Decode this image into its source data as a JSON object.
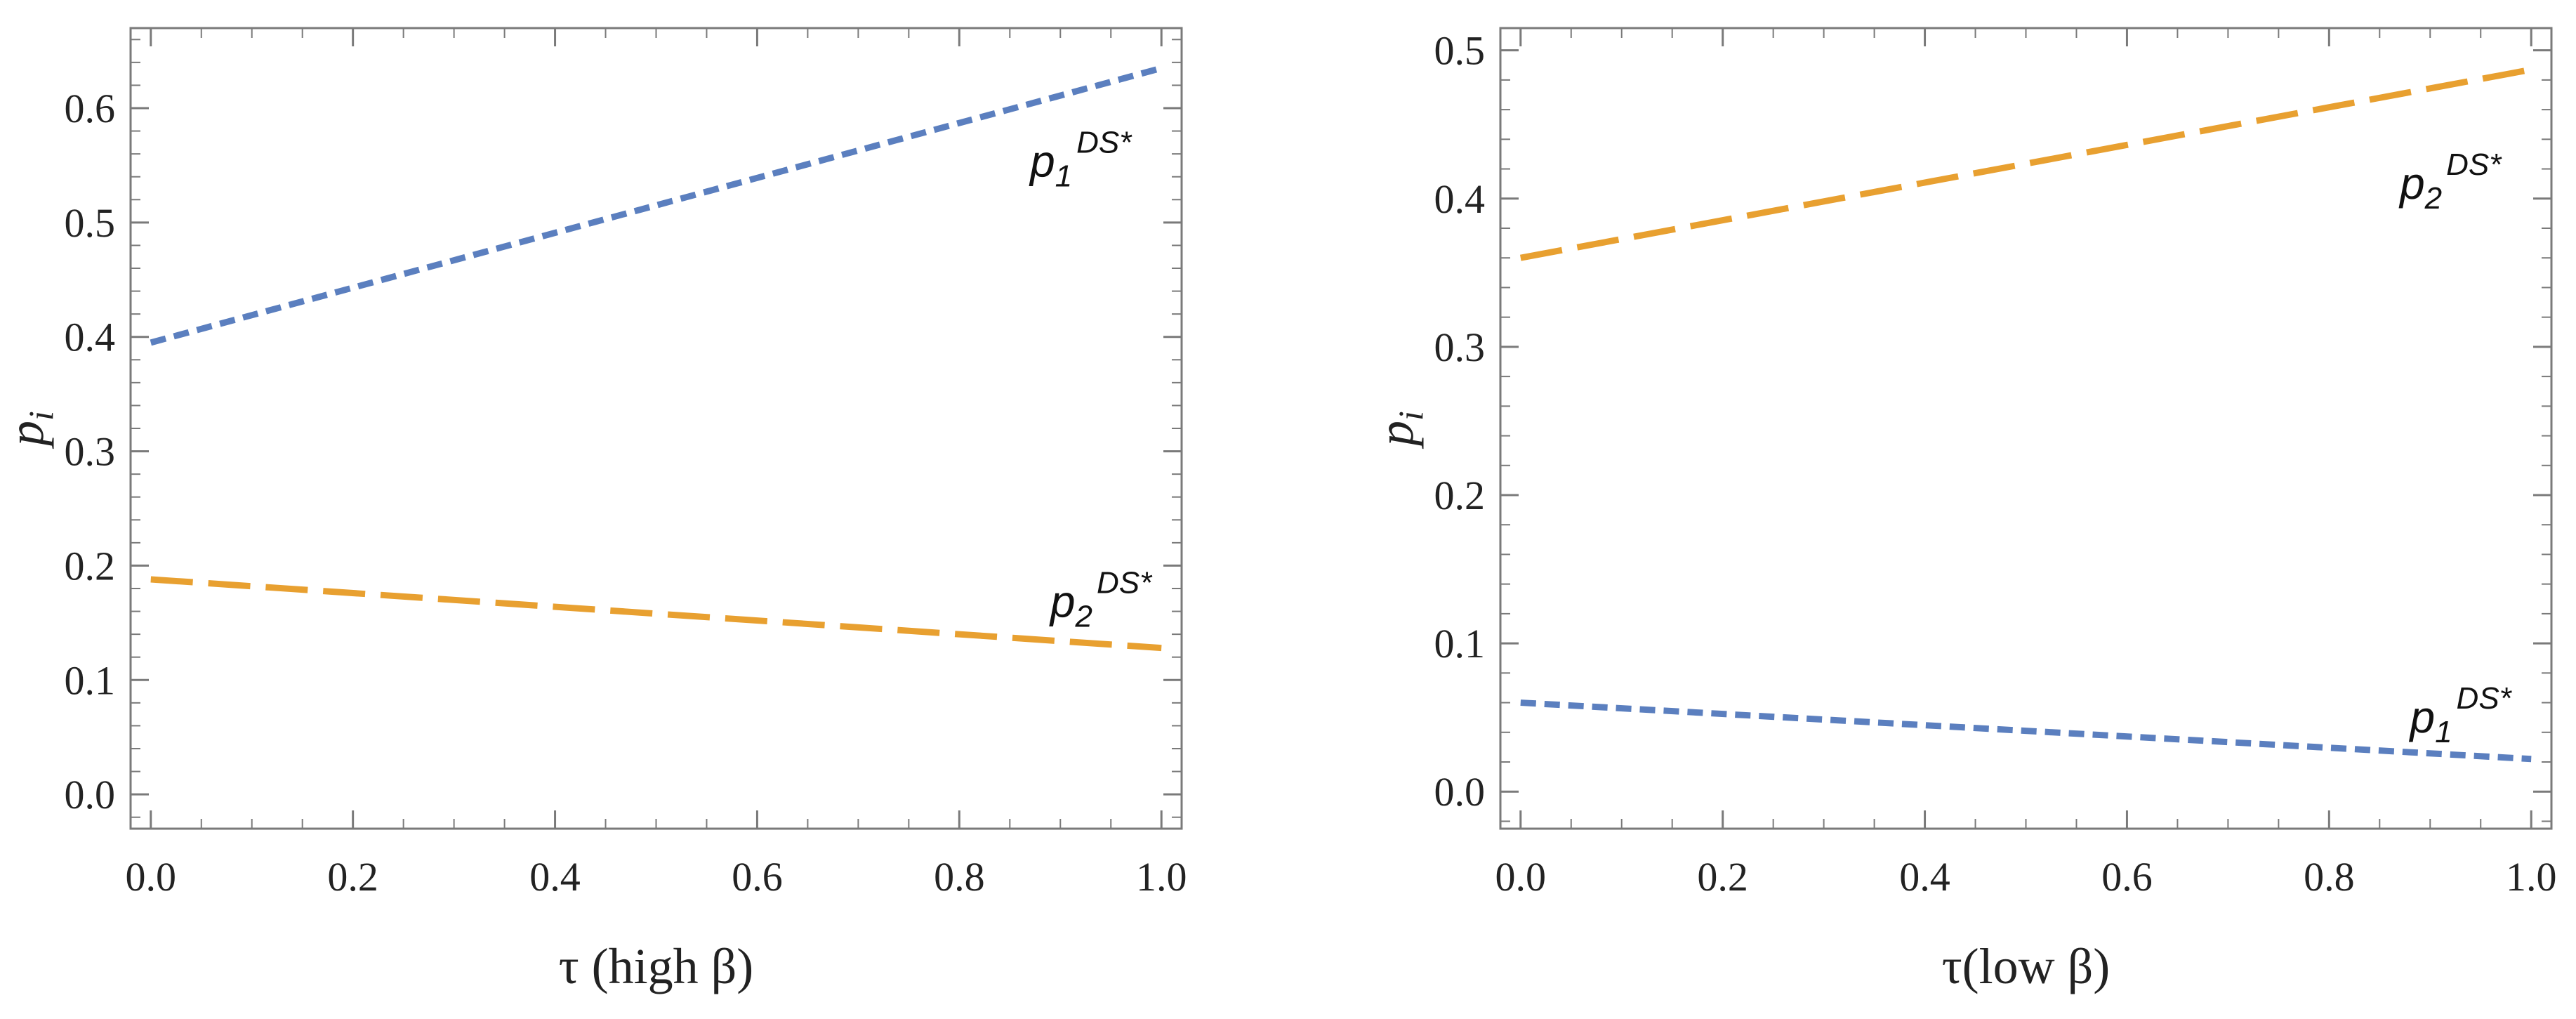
{
  "chart_data": [
    {
      "type": "line",
      "xlabel": "τ (high β)",
      "ylabel": "p i",
      "xlim": [
        -0.02,
        1.02
      ],
      "ylim": [
        -0.03,
        0.67
      ],
      "x_ticks": [
        "0.0",
        "0.2",
        "0.4",
        "0.6",
        "0.8",
        "1.0"
      ],
      "x_tick_values": [
        0,
        0.2,
        0.4,
        0.6,
        0.8,
        1.0
      ],
      "y_ticks": [
        "0.0",
        "0.1",
        "0.2",
        "0.3",
        "0.4",
        "0.5",
        "0.6"
      ],
      "y_tick_values": [
        0,
        0.1,
        0.2,
        0.3,
        0.4,
        0.5,
        0.6
      ],
      "series": [
        {
          "name": "p1 DS*",
          "color": "#5b7fbf",
          "style": "dotted",
          "x": [
            0,
            1
          ],
          "values": [
            0.395,
            0.635
          ]
        },
        {
          "name": "p2 DS*",
          "color": "#e8a030",
          "style": "dashed",
          "x": [
            0,
            1
          ],
          "values": [
            0.188,
            0.128
          ]
        }
      ],
      "annotations": [
        {
          "series": 0,
          "base": "p",
          "sub": "1",
          "sup": "DS*",
          "x": 0.87,
          "y": 0.54
        },
        {
          "series": 1,
          "base": "p",
          "sub": "2",
          "sup": "DS*",
          "x": 0.89,
          "y": 0.155
        }
      ]
    },
    {
      "type": "line",
      "xlabel": "τ(low β)",
      "ylabel": "p i",
      "xlim": [
        -0.02,
        1.02
      ],
      "ylim": [
        -0.025,
        0.515
      ],
      "x_ticks": [
        "0.0",
        "0.2",
        "0.4",
        "0.6",
        "0.8",
        "1.0"
      ],
      "x_tick_values": [
        0,
        0.2,
        0.4,
        0.6,
        0.8,
        1.0
      ],
      "y_ticks": [
        "0.0",
        "0.1",
        "0.2",
        "0.3",
        "0.4",
        "0.5"
      ],
      "y_tick_values": [
        0,
        0.1,
        0.2,
        0.3,
        0.4,
        0.5
      ],
      "series": [
        {
          "name": "p2 DS*",
          "color": "#e8a030",
          "style": "dashed",
          "x": [
            0,
            1
          ],
          "values": [
            0.36,
            0.487
          ]
        },
        {
          "name": "p1 DS*",
          "color": "#5b7fbf",
          "style": "dotted",
          "x": [
            0,
            1
          ],
          "values": [
            0.06,
            0.022
          ]
        }
      ],
      "annotations": [
        {
          "series": 0,
          "base": "p",
          "sub": "2",
          "sup": "DS*",
          "x": 0.87,
          "y": 0.4
        },
        {
          "series": 1,
          "base": "p",
          "sub": "1",
          "sup": "DS*",
          "x": 0.88,
          "y": 0.04
        }
      ]
    }
  ]
}
